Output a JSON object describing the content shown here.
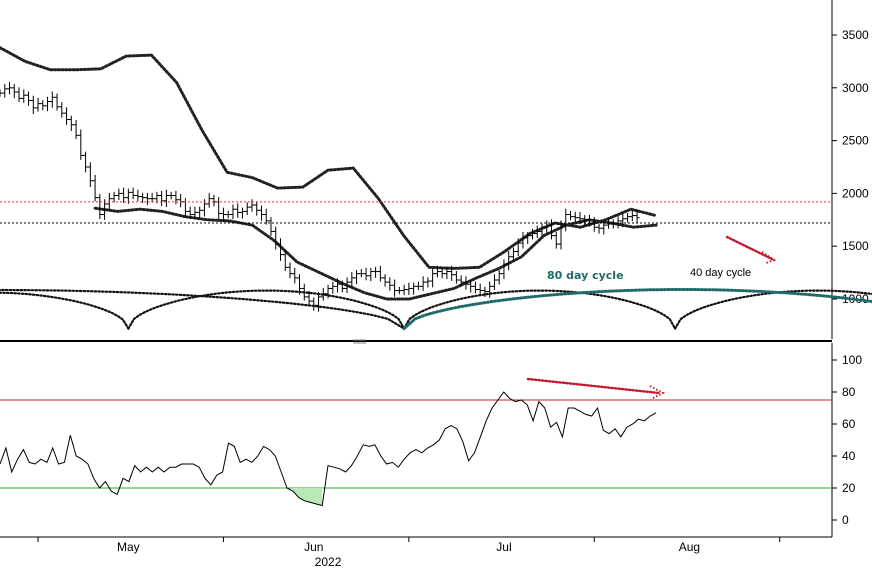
{
  "colors": {
    "background": "#ffffff",
    "price": "#000000",
    "cycle_80": "#1f6b6b",
    "resistance": "#e03030",
    "support_line": "#000000",
    "rsi_overbought": "#cc2222",
    "rsi_oversold": "#2eae2e",
    "rsi_fill": "#b9e8b9",
    "divergence_arrow": "#c0182a",
    "projection_arrow": "#c0182a"
  },
  "chart_data": [
    {
      "type": "candlestick",
      "panel": "price",
      "ylim": [
        700,
        3800
      ],
      "yticks": [
        1000,
        1500,
        2000,
        2500,
        3000,
        3500
      ],
      "ytick_labels": [
        "1000",
        "1500",
        "2000",
        "2500",
        "3000",
        "3500"
      ],
      "x_range": [
        0,
        175
      ],
      "xticks": [
        {
          "day": 27,
          "label": "May"
        },
        {
          "day": 66,
          "label": "Jun"
        },
        {
          "day": 106,
          "label": "Jul"
        },
        {
          "day": 145,
          "label": "Aug"
        }
      ],
      "x_minor_ticks": [
        8,
        47,
        86,
        125,
        164
      ],
      "year_label": {
        "day": 69,
        "label": "2022"
      },
      "price_close": [
        2950,
        2990,
        3000,
        2960,
        2900,
        2930,
        2880,
        2810,
        2850,
        2830,
        2870,
        2910,
        2820,
        2760,
        2700,
        2650,
        2550,
        2360,
        2250,
        2120,
        1960,
        1800,
        1900,
        1950,
        1980,
        2000,
        1960,
        2010,
        1980,
        1970,
        1960,
        1950,
        1950,
        1980,
        1930,
        1980,
        1980,
        1940,
        1920,
        1830,
        1800,
        1820,
        1840,
        1900,
        1950,
        1920,
        1810,
        1800,
        1800,
        1850,
        1820,
        1830,
        1870,
        1890,
        1840,
        1800,
        1740,
        1640,
        1520,
        1420,
        1300,
        1240,
        1200,
        1100,
        1020,
        980,
        940,
        1020,
        1050,
        1100,
        1120,
        1140,
        1100,
        1160,
        1200,
        1240,
        1240,
        1220,
        1260,
        1260,
        1200,
        1160,
        1130,
        1080,
        1080,
        1090,
        1100,
        1120,
        1120,
        1160,
        1170,
        1240,
        1260,
        1240,
        1260,
        1230,
        1180,
        1160,
        1140,
        1120,
        1090,
        1080,
        1070,
        1120,
        1180,
        1240,
        1330,
        1400,
        1450,
        1530,
        1580,
        1600,
        1620,
        1640,
        1680,
        1700,
        1600,
        1520,
        1700,
        1800,
        1780,
        1770,
        1760,
        1750,
        1720,
        1680,
        1670,
        1700,
        1710,
        1720,
        1740,
        1760,
        1780,
        1790,
        1770
      ],
      "x_start_day": 0,
      "x_step_days": 1,
      "overlays": [
        {
          "name": "upper-band",
          "style": "dotted",
          "values": [
            3380,
            3250,
            3170,
            3170,
            3180,
            3300,
            3310,
            3050,
            2600,
            2200,
            2150,
            2050,
            2060,
            2220,
            2240,
            1950,
            1600,
            1300,
            1290,
            1300,
            1450,
            1620,
            1720,
            1680,
            1750,
            1850,
            1790
          ]
        },
        {
          "name": "lower-band",
          "style": "dotted",
          "values": [
            1860,
            1830,
            1850,
            1830,
            1780,
            1750,
            1740,
            1700,
            1550,
            1350,
            1250,
            1150,
            1060,
            1000,
            1000,
            1050,
            1100,
            1200,
            1290,
            1400,
            1600,
            1700,
            1750,
            1720,
            1680,
            1700
          ]
        }
      ],
      "horizontal_lines": [
        {
          "name": "resistance",
          "value": 1920,
          "style": "dotted",
          "color": "#e03030"
        },
        {
          "name": "support",
          "value": 1720,
          "style": "dotted",
          "color": "#000000"
        }
      ],
      "cycles": [
        {
          "name": "40 day cycle",
          "troughs": [
            27,
            85,
            142,
            202
          ],
          "height": 1080,
          "base": 720
        },
        {
          "name": "80 day cycle",
          "troughs": [
            85,
            202
          ],
          "height": 1090,
          "base": 720
        }
      ],
      "annotations": [
        {
          "text": "80 day cycle",
          "day": 146,
          "value": 1250
        },
        {
          "text": "40 day cycle",
          "day": 179,
          "value": 1290
        }
      ]
    },
    {
      "type": "line",
      "panel": "rsi",
      "ylim": [
        -10,
        110
      ],
      "yticks": [
        0,
        20,
        40,
        60,
        80,
        100
      ],
      "ytick_labels": [
        "0",
        "20",
        "40",
        "60",
        "80",
        "100"
      ],
      "overbought": 75,
      "oversold": 20,
      "values": [
        35,
        45,
        30,
        38,
        44,
        36,
        35,
        38,
        36,
        45,
        35,
        36,
        53,
        40,
        38,
        35,
        26,
        20,
        24,
        18,
        16,
        26,
        24,
        34,
        30,
        33,
        30,
        33,
        30,
        33,
        33,
        35,
        35,
        35,
        33,
        26,
        22,
        28,
        30,
        48,
        46,
        36,
        38,
        36,
        40,
        46,
        44,
        40,
        30,
        20,
        18,
        14,
        12,
        11,
        10,
        9,
        34,
        33,
        32,
        30,
        34,
        40,
        47,
        46,
        47,
        40,
        35,
        36,
        33,
        38,
        42,
        44,
        42,
        45,
        47,
        50,
        57,
        59,
        57,
        49,
        37,
        42,
        52,
        62,
        70,
        75,
        80,
        76,
        74,
        75,
        72,
        62,
        74,
        70,
        58,
        61,
        52,
        70,
        70,
        68,
        66,
        65,
        70,
        56,
        54,
        57,
        52,
        58,
        60,
        63,
        62,
        65,
        67
      ],
      "divergence_arrow": {
        "from": [
          126,
          87
        ],
        "to": [
          159,
          78
        ]
      }
    }
  ]
}
